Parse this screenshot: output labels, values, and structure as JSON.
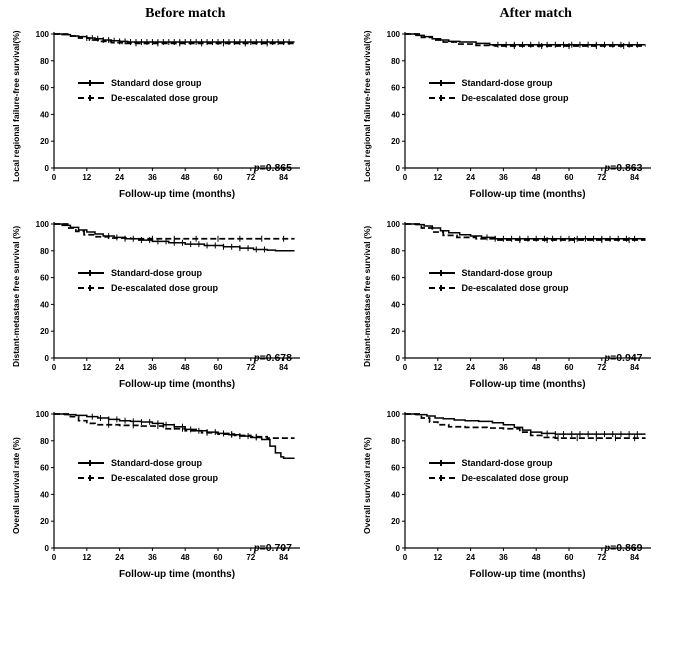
{
  "figure": {
    "column_titles": [
      "Before match",
      "After match"
    ],
    "accent_color": "#000000",
    "background": "#ffffff"
  },
  "chart_data": {
    "type": "line",
    "subtype": "kaplan-meier-step",
    "x_max": 90,
    "ylim": [
      0,
      100
    ],
    "x_ticks": [
      0,
      12,
      24,
      36,
      48,
      60,
      72,
      84
    ],
    "y_ticks": [
      0,
      20,
      40,
      60,
      80,
      100
    ],
    "grid": false,
    "legend_position": "inside-left",
    "panels": [
      {
        "column": "Before match",
        "ylabel": "Local regional failure-free survival(%)",
        "xlabel": "Follow-up time (months)",
        "p_sym": "p",
        "p_val": "=0.865",
        "legend": [
          {
            "label": "Standard dose group",
            "style": "solid"
          },
          {
            "label": "De-escalated dose group",
            "style": "dashed"
          }
        ],
        "series": [
          {
            "name": "Standard dose group",
            "style": "solid",
            "points": [
              [
                0,
                100
              ],
              [
                3,
                99.5
              ],
              [
                6,
                98.5
              ],
              [
                9,
                98
              ],
              [
                12,
                97
              ],
              [
                15,
                96.5
              ],
              [
                18,
                95.5
              ],
              [
                21,
                95
              ],
              [
                24,
                94.5
              ],
              [
                27,
                94
              ],
              [
                88,
                94
              ]
            ],
            "censor": {
              "start": 12,
              "end": 86,
              "step": 2
            }
          },
          {
            "name": "De-escalated dose group",
            "style": "dashed",
            "points": [
              [
                0,
                100
              ],
              [
                5,
                98.5
              ],
              [
                9,
                97
              ],
              [
                13,
                95.5
              ],
              [
                17,
                94.5
              ],
              [
                21,
                93.5
              ],
              [
                25,
                93
              ],
              [
                88,
                93
              ]
            ],
            "censor": {
              "start": 30,
              "end": 84,
              "step": 8
            }
          }
        ]
      },
      {
        "column": "After match",
        "ylabel": "Local regional failure-free survival(%)",
        "xlabel": "Follow-up time (months)",
        "p_sym": "p",
        "p_val": "=0.863",
        "legend": [
          {
            "label": "Standard-dose group",
            "style": "solid"
          },
          {
            "label": "De-escalated dose group",
            "style": "dashed"
          }
        ],
        "series": [
          {
            "name": "Standard-dose group",
            "style": "solid",
            "points": [
              [
                0,
                100
              ],
              [
                4,
                99
              ],
              [
                7,
                98
              ],
              [
                10,
                96.5
              ],
              [
                13,
                95.5
              ],
              [
                16,
                94.5
              ],
              [
                20,
                94
              ],
              [
                26,
                93
              ],
              [
                31,
                92
              ],
              [
                88,
                92
              ]
            ],
            "censor": {
              "start": 34,
              "end": 86,
              "step": 3
            }
          },
          {
            "name": "De-escalated dose group",
            "style": "dashed",
            "points": [
              [
                0,
                100
              ],
              [
                6,
                97.5
              ],
              [
                10,
                95.5
              ],
              [
                14,
                94
              ],
              [
                19,
                92.5
              ],
              [
                26,
                91.5
              ],
              [
                33,
                91
              ],
              [
                88,
                91
              ]
            ],
            "censor": {
              "start": 40,
              "end": 82,
              "step": 10
            }
          }
        ]
      },
      {
        "column": "Before match",
        "ylabel": "Distant-metastase free survival (%)",
        "xlabel": "Follow-up time (months)",
        "p_sym": "p",
        "p_val": "=0.678",
        "legend": [
          {
            "label": "Standard-dose group",
            "style": "solid"
          },
          {
            "label": "De-escalated dose group",
            "style": "dashed"
          }
        ],
        "series": [
          {
            "name": "Standard-dose group",
            "style": "solid",
            "points": [
              [
                0,
                100
              ],
              [
                3,
                99
              ],
              [
                6,
                97.5
              ],
              [
                9,
                95.5
              ],
              [
                12,
                94
              ],
              [
                15,
                92.5
              ],
              [
                18,
                91
              ],
              [
                22,
                90
              ],
              [
                26,
                89
              ],
              [
                31,
                88
              ],
              [
                36,
                87
              ],
              [
                42,
                86
              ],
              [
                48,
                85
              ],
              [
                55,
                84
              ],
              [
                62,
                83
              ],
              [
                68,
                82
              ],
              [
                73,
                81
              ],
              [
                78,
                80.5
              ],
              [
                81,
                80
              ],
              [
                88,
                80
              ]
            ],
            "censor": {
              "start": 20,
              "end": 78,
              "step": 3
            }
          },
          {
            "name": "De-escalated dose group",
            "style": "dashed",
            "points": [
              [
                0,
                100
              ],
              [
                5,
                97
              ],
              [
                8,
                94.5
              ],
              [
                11,
                92
              ],
              [
                15,
                90.5
              ],
              [
                20,
                89.5
              ],
              [
                28,
                89
              ],
              [
                88,
                89
              ]
            ],
            "censor": {
              "start": 36,
              "end": 84,
              "step": 8
            }
          }
        ]
      },
      {
        "column": "After match",
        "ylabel": "Distant-metastase free survival (%)",
        "xlabel": "Follow-up time (months)",
        "p_sym": "p",
        "p_val": "=0.947",
        "legend": [
          {
            "label": "Standard-dose group",
            "style": "solid"
          },
          {
            "label": "De-escalated dose group",
            "style": "dashed"
          }
        ],
        "series": [
          {
            "name": "Standard-dose group",
            "style": "solid",
            "points": [
              [
                0,
                100
              ],
              [
                4,
                99.5
              ],
              [
                7,
                98.5
              ],
              [
                10,
                97
              ],
              [
                13,
                95
              ],
              [
                16,
                93.5
              ],
              [
                20,
                92
              ],
              [
                24,
                91
              ],
              [
                28,
                90
              ],
              [
                33,
                89
              ],
              [
                88,
                89
              ]
            ],
            "censor": {
              "start": 30,
              "end": 86,
              "step": 3
            }
          },
          {
            "name": "De-escalated dose group",
            "style": "dashed",
            "points": [
              [
                0,
                100
              ],
              [
                6,
                97
              ],
              [
                10,
                94
              ],
              [
                14,
                91.5
              ],
              [
                19,
                90
              ],
              [
                26,
                89
              ],
              [
                34,
                88
              ],
              [
                88,
                88
              ]
            ],
            "censor": {
              "start": 42,
              "end": 82,
              "step": 10
            }
          }
        ]
      },
      {
        "column": "Before match",
        "ylabel": "Overall survival rate (%)",
        "xlabel": "Follow-up time (months)",
        "p_sym": "p",
        "p_val": "=0.707",
        "legend": [
          {
            "label": "Standard-dose group",
            "style": "solid"
          },
          {
            "label": "De-escalated dose group",
            "style": "dashed"
          }
        ],
        "series": [
          {
            "name": "Standard-dose group",
            "style": "solid",
            "points": [
              [
                0,
                100
              ],
              [
                4,
                99.5
              ],
              [
                8,
                99
              ],
              [
                12,
                98
              ],
              [
                16,
                97
              ],
              [
                20,
                96
              ],
              [
                24,
                95
              ],
              [
                28,
                94.5
              ],
              [
                32,
                94
              ],
              [
                36,
                93
              ],
              [
                40,
                92
              ],
              [
                44,
                90.5
              ],
              [
                48,
                88.5
              ],
              [
                52,
                87.5
              ],
              [
                56,
                86.5
              ],
              [
                60,
                85.5
              ],
              [
                64,
                84.5
              ],
              [
                68,
                83.5
              ],
              [
                72,
                82.5
              ],
              [
                76,
                81
              ],
              [
                79,
                76
              ],
              [
                81,
                71
              ],
              [
                83,
                68
              ],
              [
                84,
                67
              ],
              [
                88,
                67
              ]
            ],
            "censor": {
              "start": 14,
              "end": 74,
              "step": 3
            }
          },
          {
            "name": "De-escalated dose group",
            "style": "dashed",
            "points": [
              [
                0,
                100
              ],
              [
                6,
                98
              ],
              [
                9,
                95
              ],
              [
                12,
                93
              ],
              [
                15,
                92
              ],
              [
                24,
                91.5
              ],
              [
                32,
                91
              ],
              [
                40,
                89
              ],
              [
                48,
                87.5
              ],
              [
                54,
                86
              ],
              [
                60,
                85
              ],
              [
                66,
                84
              ],
              [
                72,
                83
              ],
              [
                78,
                82
              ],
              [
                88,
                82
              ]
            ],
            "censor": {
              "start": 20,
              "end": 76,
              "step": 9
            }
          }
        ]
      },
      {
        "column": "After match",
        "ylabel": "Overall survival rate (%)",
        "xlabel": "Follow-up time (months)",
        "p_sym": "p",
        "p_val": "=0.869",
        "legend": [
          {
            "label": "Standard-dose group",
            "style": "solid"
          },
          {
            "label": "De-escalated dose group",
            "style": "dashed"
          }
        ],
        "series": [
          {
            "name": "Standard-dose group",
            "style": "solid",
            "points": [
              [
                0,
                100
              ],
              [
                4,
                99.5
              ],
              [
                8,
                98.5
              ],
              [
                11,
                97
              ],
              [
                14,
                96.5
              ],
              [
                18,
                95.5
              ],
              [
                22,
                95
              ],
              [
                27,
                94.5
              ],
              [
                32,
                93.5
              ],
              [
                36,
                92
              ],
              [
                40,
                90
              ],
              [
                43,
                88
              ],
              [
                46,
                86.5
              ],
              [
                50,
                85.5
              ],
              [
                55,
                85
              ],
              [
                88,
                85
              ]
            ],
            "censor": {
              "start": 52,
              "end": 86,
              "step": 3
            }
          },
          {
            "name": "De-escalated dose group",
            "style": "dashed",
            "points": [
              [
                0,
                100
              ],
              [
                6,
                97
              ],
              [
                9,
                94
              ],
              [
                12,
                92
              ],
              [
                16,
                90.5
              ],
              [
                22,
                90
              ],
              [
                30,
                89.5
              ],
              [
                36,
                89
              ],
              [
                42,
                86.5
              ],
              [
                46,
                84
              ],
              [
                50,
                82.5
              ],
              [
                55,
                82
              ],
              [
                88,
                82
              ]
            ],
            "censor": {
              "start": 56,
              "end": 84,
              "step": 7
            }
          }
        ]
      }
    ]
  }
}
